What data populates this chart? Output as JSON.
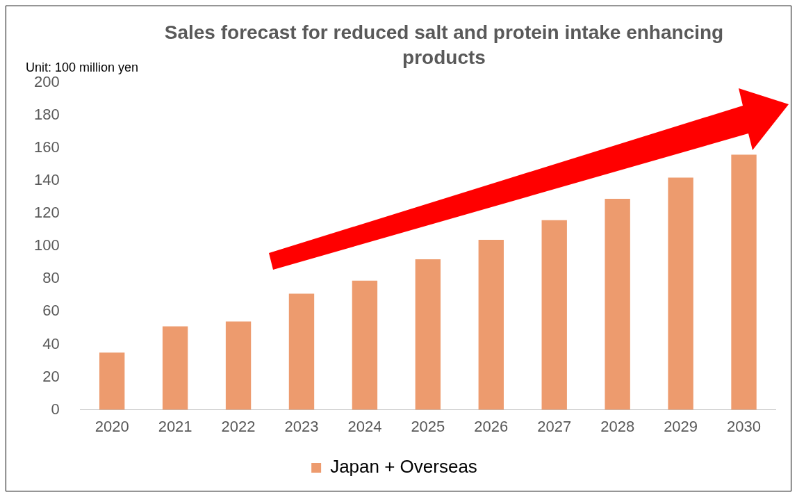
{
  "chart_data": {
    "type": "bar",
    "title": "Sales forecast for reduced salt and protein intake enhancing products",
    "ylabel": "Unit: 100 million yen",
    "categories": [
      "2020",
      "2021",
      "2022",
      "2023",
      "2024",
      "2025",
      "2026",
      "2027",
      "2028",
      "2029",
      "2030"
    ],
    "series": [
      {
        "name": "Japan + Overseas",
        "color": "#ed9b6e",
        "values": [
          35,
          51,
          54,
          71,
          79,
          92,
          104,
          116,
          129,
          142,
          156
        ]
      }
    ],
    "ylim": [
      0,
      200
    ],
    "yticks": [
      0,
      20,
      40,
      60,
      80,
      100,
      120,
      140,
      160,
      180,
      200
    ],
    "legend": "bottom"
  }
}
